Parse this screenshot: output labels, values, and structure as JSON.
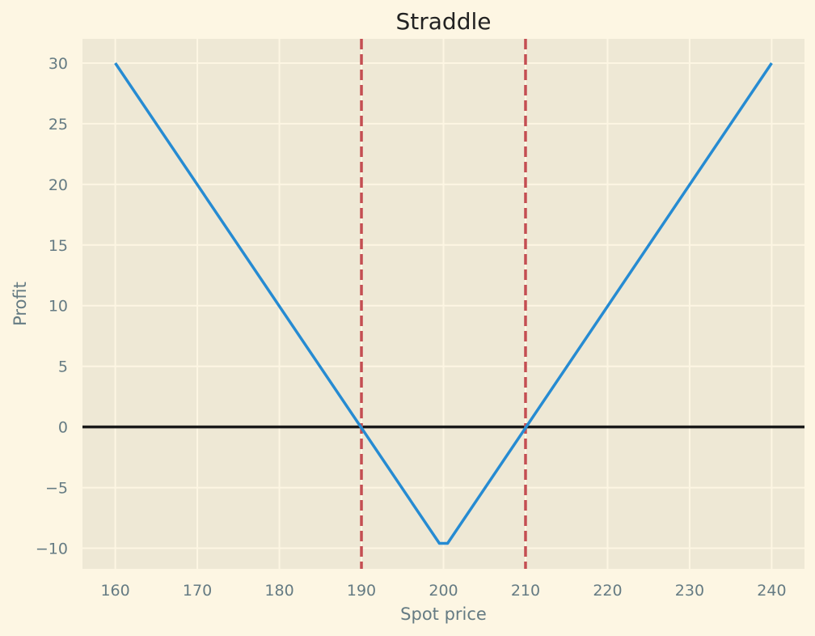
{
  "chart_data": {
    "type": "line",
    "title": "Straddle",
    "xlabel": "Spot price",
    "ylabel": "Profit",
    "xlim": [
      156,
      244
    ],
    "ylim": [
      -11.7,
      32
    ],
    "xticks": [
      160,
      170,
      180,
      190,
      200,
      210,
      220,
      230,
      240
    ],
    "yticks": [
      -10,
      -5,
      0,
      5,
      10,
      15,
      20,
      25,
      30
    ],
    "ytick_labels": [
      "−10",
      "−5",
      "0",
      "5",
      "10",
      "15",
      "20",
      "25",
      "30"
    ],
    "grid": true,
    "series": [
      {
        "x": [
          160,
          199.5,
          200.5,
          240
        ],
        "y": [
          30,
          -9.6,
          -9.6,
          30
        ],
        "color": "#268bd2"
      }
    ],
    "hlines": [
      {
        "y": 0,
        "color": "#1a1a1a",
        "style": "solid"
      }
    ],
    "vlines": [
      {
        "x": 190,
        "color": "#c44e52",
        "style": "dashed"
      },
      {
        "x": 210,
        "color": "#c44e52",
        "style": "dashed"
      }
    ],
    "colors": {
      "figure_background": "#fdf6e3",
      "plot_background": "#eee8d5",
      "grid": "#fdf6e3",
      "tick_text": "#657b83"
    }
  }
}
